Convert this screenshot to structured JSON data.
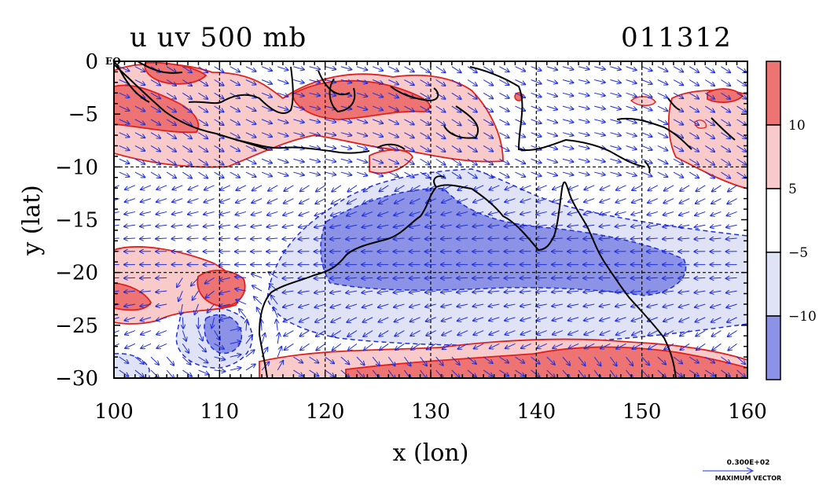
{
  "title": {
    "variables": "u uv 500 mb",
    "date": "011312"
  },
  "map": {
    "xlabel": "x (lon)",
    "ylabel": "y (lat)",
    "equator_label": "EQ",
    "x_ticks": [
      "100",
      "110",
      "120",
      "130",
      "140",
      "150",
      "160"
    ],
    "y_ticks": [
      "0",
      "−5",
      "−10",
      "−15",
      "−20",
      "−25",
      "−30"
    ],
    "lon_range": [
      100,
      160
    ],
    "lat_range": [
      -30,
      0
    ],
    "grid_lons": [
      110,
      120,
      130,
      140,
      150
    ],
    "grid_lats": [
      -10,
      -20
    ],
    "vector_color": "#1f2fd8",
    "contour_color": "#e0201e",
    "coast_color": "#000000"
  },
  "colorbar": {
    "labels": [
      "10",
      "5",
      "−5",
      "−10"
    ],
    "colors": [
      "#ee7373",
      "#f9caca",
      "#ffffff",
      "#e0e2f6",
      "#8c92e6"
    ]
  },
  "max_vector": {
    "value": "0.300E+02",
    "label": "MAXIMUM VECTOR"
  }
}
